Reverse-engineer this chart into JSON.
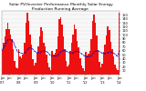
{
  "title": "Solar PV/Inverter Performance Monthly Solar Energy Production Running Average",
  "bar_values": [
    62,
    80,
    95,
    115,
    130,
    115,
    100,
    90,
    65,
    35,
    18,
    15,
    65,
    45,
    42,
    50,
    80,
    130,
    155,
    135,
    100,
    75,
    40,
    22,
    30,
    55,
    70,
    95,
    120,
    110,
    80,
    70,
    50,
    30,
    18,
    12,
    60,
    50,
    55,
    65,
    95,
    140,
    145,
    125,
    95,
    65,
    35,
    20,
    25,
    60,
    80,
    100,
    125,
    115,
    85,
    68,
    42,
    22,
    15,
    10,
    58,
    48,
    52,
    60,
    90,
    135,
    150,
    130,
    98,
    62,
    32,
    18,
    28,
    58,
    75,
    98,
    122,
    112,
    82,
    65,
    45,
    25,
    16,
    11,
    155
  ],
  "running_avg": [
    62,
    68,
    74,
    81,
    88,
    90,
    88,
    87,
    82,
    74,
    65,
    57,
    57,
    55,
    54,
    53,
    54,
    58,
    63,
    67,
    68,
    67,
    64,
    60,
    57,
    56,
    55,
    56,
    58,
    60,
    60,
    59,
    58,
    55,
    51,
    47,
    47,
    47,
    47,
    47,
    49,
    53,
    57,
    60,
    61,
    61,
    59,
    57,
    55,
    54,
    54,
    55,
    57,
    59,
    59,
    58,
    56,
    53,
    50,
    47,
    46,
    46,
    46,
    46,
    48,
    52,
    56,
    59,
    60,
    60,
    58,
    56,
    54,
    53,
    53,
    54,
    56,
    57,
    57,
    56,
    55,
    52,
    49,
    46,
    60
  ],
  "bar_color": "#ee1111",
  "avg_line_color": "#0000cc",
  "bg_color": "#ffffff",
  "plot_bg_color": "#f8f8f8",
  "grid_color": "#bbbbbb",
  "ylim": [
    0,
    160
  ],
  "ytick_values": [
    10,
    20,
    30,
    40,
    50,
    60,
    70,
    80,
    90,
    100,
    110,
    120,
    130,
    140,
    150
  ],
  "title_fontsize": 3.2,
  "tick_fontsize": 2.5,
  "n_bars": 85
}
